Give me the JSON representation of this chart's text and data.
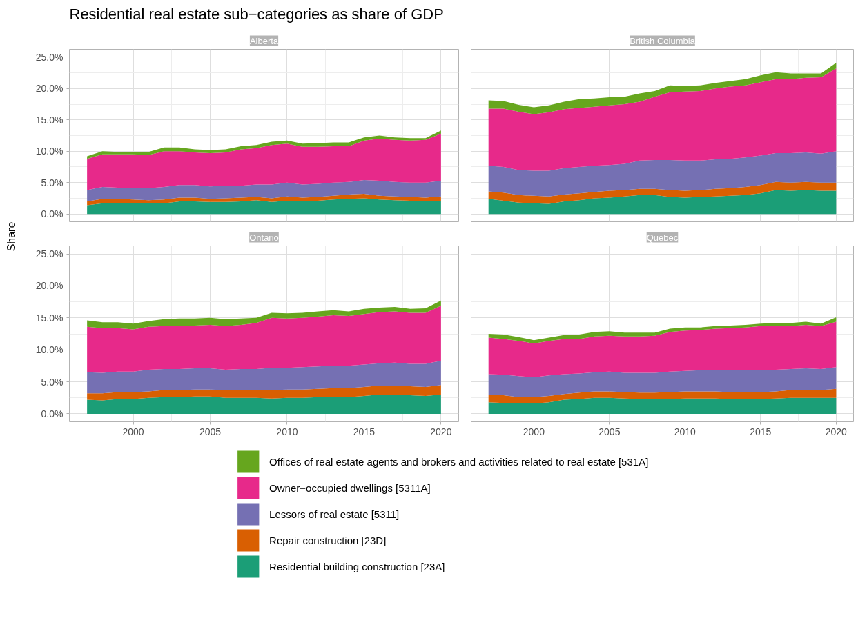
{
  "chart_data": [
    {
      "type": "area",
      "title": "Residential real estate sub−categories as share of GDP",
      "subtitle": "Alberta",
      "ylabel": "Share",
      "stacked": true,
      "grid": true,
      "legend": "bottom",
      "tick_labels": "y",
      "xlim": [
        1995.85,
        2021.15
      ],
      "ylim": [
        -1.25,
        26.25
      ],
      "xticks": [
        2000,
        2005,
        2010,
        2015,
        2020
      ],
      "yticks": [
        {
          "value": 0,
          "label": "0.0%"
        },
        {
          "value": 5,
          "label": "5.0%"
        },
        {
          "value": 10,
          "label": "10.0%"
        },
        {
          "value": 15,
          "label": "15.0%"
        },
        {
          "value": 20,
          "label": "20.0%"
        },
        {
          "value": 25,
          "label": "25.0%"
        }
      ],
      "x": [
        1997,
        1998,
        1999,
        2000,
        2001,
        2002,
        2003,
        2004,
        2005,
        2006,
        2007,
        2008,
        2009,
        2010,
        2011,
        2012,
        2013,
        2014,
        2015,
        2016,
        2017,
        2018,
        2019,
        2020
      ],
      "series": [
        {
          "name": "Residential building construction [23A]",
          "color": "#1b9e77",
          "values": [
            1.4,
            1.7,
            1.7,
            1.7,
            1.7,
            1.7,
            2.0,
            2.0,
            1.9,
            1.9,
            2.0,
            2.2,
            1.9,
            2.1,
            2.0,
            2.1,
            2.3,
            2.4,
            2.5,
            2.3,
            2.2,
            2.1,
            2.0,
            2.0
          ]
        },
        {
          "name": "Repair construction [23D]",
          "color": "#d95f02",
          "values": [
            0.6,
            0.7,
            0.7,
            0.6,
            0.5,
            0.6,
            0.6,
            0.6,
            0.5,
            0.6,
            0.6,
            0.5,
            0.6,
            0.7,
            0.6,
            0.6,
            0.6,
            0.7,
            0.7,
            0.6,
            0.6,
            0.6,
            0.6,
            0.8
          ]
        },
        {
          "name": "Lessors of real estate [5311]",
          "color": "#7570b3",
          "values": [
            1.8,
            1.9,
            1.8,
            1.9,
            1.9,
            2.0,
            2.0,
            2.0,
            2.0,
            2.0,
            1.9,
            2.0,
            2.2,
            2.2,
            2.1,
            2.1,
            2.1,
            2.0,
            2.2,
            2.4,
            2.3,
            2.3,
            2.4,
            2.5
          ]
        },
        {
          "name": "Owner−occupied dwellings [5311A]",
          "color": "#e7298a",
          "values": [
            5.0,
            5.2,
            5.3,
            5.3,
            5.3,
            5.7,
            5.4,
            5.2,
            5.3,
            5.3,
            5.8,
            5.8,
            6.3,
            6.2,
            6.0,
            5.9,
            5.8,
            5.7,
            6.3,
            6.7,
            6.7,
            6.7,
            6.8,
            7.5
          ]
        },
        {
          "name": "Offices of real estate agents and brokers and activities related to real estate [531A]",
          "color": "#66a61e",
          "values": [
            0.4,
            0.5,
            0.4,
            0.4,
            0.5,
            0.6,
            0.6,
            0.5,
            0.5,
            0.5,
            0.5,
            0.5,
            0.5,
            0.5,
            0.5,
            0.6,
            0.6,
            0.6,
            0.5,
            0.5,
            0.4,
            0.4,
            0.3,
            0.5
          ]
        }
      ]
    },
    {
      "type": "area",
      "subtitle": "British Columbia",
      "stacked": true,
      "grid": true,
      "tick_labels": false,
      "xlim": [
        1995.85,
        2021.15
      ],
      "ylim": [
        -1.25,
        26.25
      ],
      "xticks": [
        2000,
        2005,
        2010,
        2015,
        2020
      ],
      "yticks": [
        0,
        5,
        10,
        15,
        20,
        25
      ],
      "x": [
        1997,
        1998,
        1999,
        2000,
        2001,
        2002,
        2003,
        2004,
        2005,
        2006,
        2007,
        2008,
        2009,
        2010,
        2011,
        2012,
        2013,
        2014,
        2015,
        2016,
        2017,
        2018,
        2019,
        2020
      ],
      "series": [
        {
          "color": "#1b9e77",
          "values": [
            2.4,
            2.1,
            1.8,
            1.7,
            1.6,
            2.0,
            2.2,
            2.5,
            2.6,
            2.8,
            3.0,
            3.0,
            2.7,
            2.6,
            2.7,
            2.8,
            2.9,
            3.0,
            3.3,
            3.8,
            3.7,
            3.8,
            3.7,
            3.7
          ]
        },
        {
          "color": "#d95f02",
          "values": [
            1.2,
            1.3,
            1.2,
            1.2,
            1.2,
            1.1,
            1.1,
            1.0,
            1.1,
            1.0,
            1.0,
            1.0,
            1.1,
            1.1,
            1.1,
            1.2,
            1.2,
            1.3,
            1.3,
            1.3,
            1.3,
            1.3,
            1.3,
            1.3
          ]
        },
        {
          "color": "#7570b3",
          "values": [
            4.1,
            4.1,
            4.0,
            4.0,
            4.1,
            4.2,
            4.2,
            4.2,
            4.1,
            4.2,
            4.5,
            4.6,
            4.8,
            4.8,
            4.7,
            4.7,
            4.7,
            4.7,
            4.7,
            4.6,
            4.7,
            4.7,
            4.6,
            5.0
          ]
        },
        {
          "color": "#e7298a",
          "values": [
            9.1,
            9.3,
            9.3,
            9.0,
            9.3,
            9.4,
            9.4,
            9.4,
            9.5,
            9.5,
            9.4,
            10.1,
            10.8,
            11.0,
            11.1,
            11.3,
            11.5,
            11.5,
            11.7,
            11.8,
            11.8,
            11.9,
            12.2,
            13.2
          ]
        },
        {
          "color": "#66a61e",
          "values": [
            1.3,
            1.2,
            1.1,
            1.1,
            1.1,
            1.2,
            1.4,
            1.3,
            1.3,
            1.2,
            1.3,
            0.9,
            1.1,
            0.9,
            0.9,
            0.9,
            0.9,
            1.0,
            1.1,
            1.1,
            0.9,
            0.7,
            0.6,
            0.9
          ]
        }
      ]
    },
    {
      "type": "area",
      "subtitle": "Ontario",
      "stacked": true,
      "grid": true,
      "xlim": [
        1995.85,
        2021.15
      ],
      "ylim": [
        -1.25,
        26.25
      ],
      "xticks": [
        2000,
        2005,
        2010,
        2015,
        2020
      ],
      "yticks": [
        {
          "value": 0,
          "label": "0.0%"
        },
        {
          "value": 5,
          "label": "5.0%"
        },
        {
          "value": 10,
          "label": "10.0%"
        },
        {
          "value": 15,
          "label": "15.0%"
        },
        {
          "value": 20,
          "label": "20.0%"
        },
        {
          "value": 25,
          "label": "25.0%"
        }
      ],
      "x": [
        1997,
        1998,
        1999,
        2000,
        2001,
        2002,
        2003,
        2004,
        2005,
        2006,
        2007,
        2008,
        2009,
        2010,
        2011,
        2012,
        2013,
        2014,
        2015,
        2016,
        2017,
        2018,
        2019,
        2020
      ],
      "series": [
        {
          "color": "#1b9e77",
          "values": [
            2.2,
            2.1,
            2.3,
            2.3,
            2.5,
            2.6,
            2.6,
            2.7,
            2.7,
            2.5,
            2.5,
            2.5,
            2.4,
            2.5,
            2.5,
            2.6,
            2.6,
            2.6,
            2.8,
            3.0,
            3.0,
            2.9,
            2.8,
            3.0
          ]
        },
        {
          "color": "#d95f02",
          "values": [
            1.0,
            1.1,
            1.1,
            1.1,
            1.0,
            1.1,
            1.1,
            1.1,
            1.1,
            1.2,
            1.2,
            1.2,
            1.3,
            1.3,
            1.3,
            1.3,
            1.4,
            1.4,
            1.4,
            1.4,
            1.4,
            1.4,
            1.4,
            1.5
          ]
        },
        {
          "color": "#7570b3",
          "values": [
            3.3,
            3.2,
            3.2,
            3.2,
            3.4,
            3.3,
            3.3,
            3.3,
            3.3,
            3.2,
            3.3,
            3.3,
            3.5,
            3.4,
            3.5,
            3.5,
            3.5,
            3.5,
            3.5,
            3.5,
            3.6,
            3.5,
            3.6,
            3.8
          ]
        },
        {
          "color": "#e7298a",
          "values": [
            7.1,
            7.0,
            6.8,
            6.6,
            6.7,
            6.7,
            6.7,
            6.7,
            6.8,
            6.8,
            6.9,
            7.2,
            7.8,
            7.7,
            7.7,
            7.8,
            7.9,
            7.8,
            7.9,
            8.0,
            8.0,
            8.0,
            8.0,
            8.6
          ]
        },
        {
          "color": "#66a61e",
          "values": [
            1.0,
            0.9,
            0.9,
            0.9,
            0.9,
            1.1,
            1.2,
            1.1,
            1.1,
            1.1,
            1.0,
            0.8,
            0.8,
            0.8,
            0.8,
            0.8,
            0.8,
            0.7,
            0.8,
            0.7,
            0.7,
            0.6,
            0.7,
            0.8
          ]
        }
      ]
    },
    {
      "type": "area",
      "subtitle": "Quebec",
      "stacked": true,
      "grid": true,
      "tick_labels": "x",
      "xlim": [
        1995.85,
        2021.15
      ],
      "ylim": [
        -1.25,
        26.25
      ],
      "xticks": [
        2000,
        2005,
        2010,
        2015,
        2020
      ],
      "yticks": [
        0,
        5,
        10,
        15,
        20,
        25
      ],
      "x": [
        1997,
        1998,
        1999,
        2000,
        2001,
        2002,
        2003,
        2004,
        2005,
        2006,
        2007,
        2008,
        2009,
        2010,
        2011,
        2012,
        2013,
        2014,
        2015,
        2016,
        2017,
        2018,
        2019,
        2020
      ],
      "series": [
        {
          "color": "#1b9e77",
          "values": [
            1.8,
            1.7,
            1.6,
            1.6,
            1.8,
            2.2,
            2.3,
            2.5,
            2.5,
            2.4,
            2.3,
            2.3,
            2.3,
            2.4,
            2.4,
            2.4,
            2.3,
            2.3,
            2.3,
            2.4,
            2.5,
            2.5,
            2.5,
            2.5
          ]
        },
        {
          "color": "#d95f02",
          "values": [
            1.1,
            1.2,
            1.0,
            1.0,
            1.0,
            0.9,
            1.0,
            1.0,
            1.0,
            1.0,
            1.0,
            1.0,
            1.1,
            1.1,
            1.1,
            1.1,
            1.1,
            1.1,
            1.1,
            1.1,
            1.2,
            1.2,
            1.2,
            1.4
          ]
        },
        {
          "color": "#7570b3",
          "values": [
            3.3,
            3.2,
            3.3,
            3.1,
            3.2,
            3.1,
            3.0,
            3.0,
            3.1,
            3.0,
            3.1,
            3.1,
            3.2,
            3.2,
            3.3,
            3.3,
            3.4,
            3.4,
            3.4,
            3.4,
            3.3,
            3.4,
            3.3,
            3.4
          ]
        },
        {
          "color": "#e7298a",
          "values": [
            5.7,
            5.6,
            5.5,
            5.3,
            5.4,
            5.5,
            5.4,
            5.6,
            5.6,
            5.7,
            5.7,
            5.8,
            6.2,
            6.3,
            6.3,
            6.5,
            6.6,
            6.7,
            6.9,
            6.9,
            6.7,
            6.8,
            6.7,
            7.1
          ]
        },
        {
          "color": "#66a61e",
          "values": [
            0.6,
            0.7,
            0.6,
            0.5,
            0.5,
            0.6,
            0.7,
            0.7,
            0.7,
            0.6,
            0.6,
            0.5,
            0.5,
            0.5,
            0.4,
            0.4,
            0.4,
            0.4,
            0.4,
            0.4,
            0.5,
            0.5,
            0.4,
            0.7
          ]
        }
      ]
    }
  ]
}
